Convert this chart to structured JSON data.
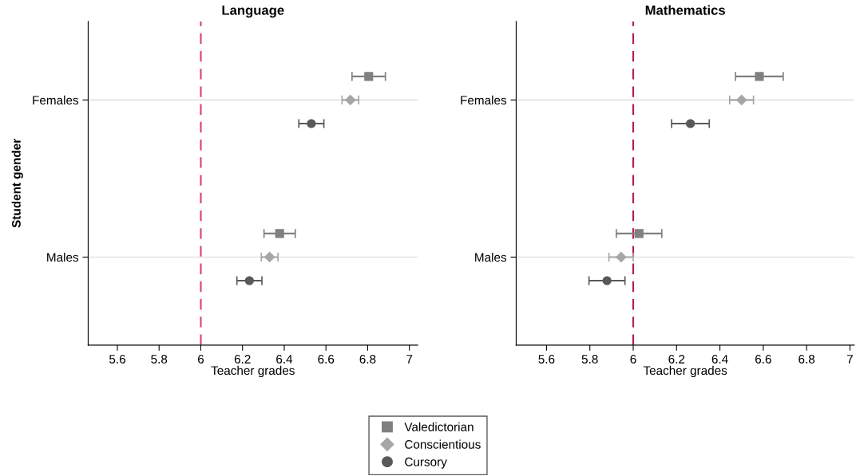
{
  "chart_data": [
    {
      "type": "scatter",
      "orientation": "horizontal",
      "title": "Language",
      "xlabel": "Teacher grades",
      "ylabel": "Student gender",
      "categories": [
        "Females",
        "Males"
      ],
      "series": [
        {
          "name": "Valedictorian",
          "color": "#808080",
          "marker": "square",
          "values": [
            6.805,
            6.378
          ],
          "errors": [
            0.08,
            0.075
          ]
        },
        {
          "name": "Conscientious",
          "color": "#a6a6a6",
          "marker": "diamond",
          "values": [
            6.717,
            6.33
          ],
          "errors": [
            0.04,
            0.04
          ]
        },
        {
          "name": "Cursory",
          "color": "#595959",
          "marker": "circle",
          "values": [
            6.53,
            6.233
          ],
          "errors": [
            0.06,
            0.06
          ]
        }
      ],
      "xlim": [
        5.46,
        7.04
      ],
      "xticks": [
        5.6,
        5.8,
        6,
        6.2,
        6.4,
        6.6,
        6.8,
        7
      ],
      "grid": "y",
      "legend": "bottom",
      "ref_lines": [
        {
          "axis": "x",
          "value": 6,
          "color": "#dc4b73",
          "line_style": "dashed"
        }
      ]
    },
    {
      "type": "scatter",
      "orientation": "horizontal",
      "title": "Mathematics",
      "xlabel": "Teacher grades",
      "categories": [
        "Females",
        "Males"
      ],
      "series": [
        {
          "color": "#808080",
          "marker": "square",
          "values": [
            6.582,
            6.027
          ],
          "errors": [
            0.11,
            0.105
          ]
        },
        {
          "color": "#a6a6a6",
          "marker": "diamond",
          "values": [
            6.5,
            5.944
          ],
          "errors": [
            0.055,
            0.056
          ]
        },
        {
          "color": "#595959",
          "marker": "circle",
          "values": [
            6.264,
            5.879
          ],
          "errors": [
            0.087,
            0.083
          ]
        }
      ],
      "xlim": [
        5.46,
        7.02
      ],
      "xticks": [
        5.6,
        5.8,
        6,
        6.2,
        6.4,
        6.6,
        6.8,
        7
      ],
      "grid": "y",
      "ref_lines": [
        {
          "axis": "x",
          "value": 6,
          "color": "#b8204a",
          "line_style": "dashed"
        }
      ]
    }
  ]
}
